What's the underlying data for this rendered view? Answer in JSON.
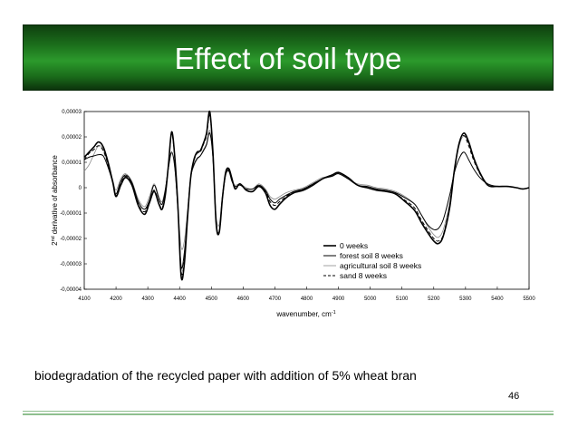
{
  "slide": {
    "title": "Effect of soil type",
    "caption": "biodegradation of the recycled paper with addition of 5% wheat bran",
    "page_number": "46"
  },
  "chart_data": {
    "type": "line",
    "title": "",
    "xlabel": "wavenumber, cm",
    "xlabel_sup": "-1",
    "ylabel_pre": "2",
    "ylabel_sup": "nd",
    "ylabel_post": "derivative of absorbance",
    "xlim": [
      4100,
      5500
    ],
    "ylim": [
      -4e-05,
      3e-05
    ],
    "xticks": [
      4100,
      4200,
      4300,
      4400,
      4500,
      4600,
      4700,
      4800,
      4900,
      5000,
      5100,
      5200,
      5300,
      5400,
      5500
    ],
    "yticks": [
      {
        "value": 3e-05,
        "label": "0,00003"
      },
      {
        "value": 2e-05,
        "label": "0,00002"
      },
      {
        "value": 1e-05,
        "label": "0,00001"
      },
      {
        "value": 0,
        "label": "0"
      },
      {
        "value": -1e-05,
        "label": "-0,00001"
      },
      {
        "value": -2e-05,
        "label": "-0,00002"
      },
      {
        "value": -3e-05,
        "label": "-0,00003"
      },
      {
        "value": -4e-05,
        "label": "-0,00004"
      }
    ],
    "grid": false,
    "legend_position": "lower-right",
    "series": [
      {
        "name": "0 weeks",
        "style": "solid",
        "width": 1.6,
        "color": "#000000",
        "x": [
          4100,
          4115,
          4130,
          4145,
          4160,
          4175,
          4190,
          4200,
          4215,
          4230,
          4250,
          4270,
          4290,
          4305,
          4320,
          4335,
          4345,
          4355,
          4365,
          4375,
          4385,
          4395,
          4405,
          4415,
          4425,
          4435,
          4445,
          4455,
          4465,
          4475,
          4485,
          4495,
          4505,
          4515,
          4525,
          4535,
          4545,
          4555,
          4565,
          4575,
          4590,
          4610,
          4630,
          4650,
          4670,
          4685,
          4700,
          4715,
          4735,
          4760,
          4790,
          4820,
          4850,
          4880,
          4900,
          4930,
          4960,
          4990,
          5020,
          5050,
          5080,
          5110,
          5140,
          5160,
          5180,
          5200,
          5215,
          5230,
          5250,
          5265,
          5280,
          5295,
          5310,
          5325,
          5345,
          5370,
          5400,
          5430,
          5460,
          5480,
          5500
        ],
        "y": [
          1.2e-05,
          1.4e-05,
          1.6e-05,
          1.8e-05,
          1.6e-05,
          1e-05,
          2e-06,
          -3.5e-06,
          1e-06,
          4e-06,
          1e-06,
          -7e-06,
          -1.05e-05,
          -6e-06,
          -1.5e-06,
          -6.5e-06,
          -8.5e-06,
          -3e-06,
          9e-06,
          2.2e-05,
          1.2e-05,
          -8e-06,
          -3.5e-05,
          -3e-05,
          -1.2e-05,
          4e-06,
          1.1e-05,
          1.4e-05,
          1.45e-05,
          1.75e-05,
          2.15e-05,
          3e-05,
          1.4e-05,
          -1.4e-05,
          -1.75e-05,
          -4e-06,
          6e-06,
          7.5e-06,
          3.5e-06,
          -5e-07,
          1.5e-06,
          -1e-06,
          -1.5e-06,
          5e-07,
          -2e-06,
          -7e-06,
          -8.5e-06,
          -6.5e-06,
          -4e-06,
          -2e-06,
          -1e-06,
          1e-06,
          3.5e-06,
          5e-06,
          6e-06,
          4e-06,
          1e-06,
          0,
          -1e-06,
          -1.5e-06,
          -2.5e-06,
          -5.5e-06,
          -9e-06,
          -1.35e-05,
          -1.75e-05,
          -2.1e-05,
          -2.2e-05,
          -1.9e-05,
          -8e-06,
          7e-06,
          1.75e-05,
          2.15e-05,
          1.8e-05,
          1.2e-05,
          6e-06,
          1e-06,
          5e-07,
          5e-07,
          0,
          -5e-07,
          0
        ]
      },
      {
        "name": "forest soil 8 weeks",
        "style": "solid",
        "width": 1.0,
        "color": "#000000",
        "x": [
          4100,
          4115,
          4130,
          4145,
          4160,
          4175,
          4190,
          4200,
          4215,
          4230,
          4250,
          4270,
          4290,
          4305,
          4320,
          4335,
          4345,
          4355,
          4365,
          4375,
          4385,
          4395,
          4405,
          4415,
          4425,
          4435,
          4445,
          4455,
          4465,
          4475,
          4485,
          4495,
          4505,
          4515,
          4525,
          4535,
          4545,
          4555,
          4565,
          4575,
          4590,
          4610,
          4630,
          4650,
          4670,
          4685,
          4700,
          4715,
          4735,
          4760,
          4790,
          4820,
          4850,
          4880,
          4900,
          4930,
          4960,
          4990,
          5020,
          5050,
          5080,
          5110,
          5140,
          5160,
          5180,
          5200,
          5215,
          5230,
          5250,
          5265,
          5280,
          5295,
          5310,
          5325,
          5345,
          5370,
          5400,
          5430,
          5460,
          5480,
          5500
        ],
        "y": [
          1.1e-05,
          1.2e-05,
          1.25e-05,
          1.3e-05,
          1.25e-05,
          8e-06,
          2e-06,
          -2.5e-06,
          2.5e-06,
          5e-06,
          2e-06,
          -5.5e-06,
          -8.5e-06,
          -5e-06,
          1e-06,
          -4.5e-06,
          -6.5e-06,
          -1e-06,
          8e-06,
          1.4e-05,
          8e-06,
          -9e-06,
          -3.1e-05,
          -2.55e-05,
          -1.1e-05,
          4e-06,
          9e-06,
          1.15e-05,
          1.25e-05,
          1.45e-05,
          1.7e-05,
          2.15e-05,
          1.2e-05,
          -1.3e-05,
          -1.75e-05,
          -4e-06,
          5e-06,
          6.5e-06,
          2.5e-06,
          5e-07,
          1e-06,
          -5e-07,
          -5e-07,
          1e-06,
          -1e-06,
          -4.5e-06,
          -6e-06,
          -4.5e-06,
          -3e-06,
          -1.5e-06,
          -5e-07,
          1.5e-06,
          3.5e-06,
          4.5e-06,
          5.5e-06,
          3.5e-06,
          1e-06,
          5e-07,
          -5e-07,
          -1e-06,
          -2e-06,
          -4e-06,
          -6.5e-06,
          -1.05e-05,
          -1.45e-05,
          -1.65e-05,
          -1.6e-05,
          -1.25e-05,
          -3e-06,
          6e-06,
          1.15e-05,
          1.4e-05,
          1.1e-05,
          7.5e-06,
          4e-06,
          1.5e-06,
          5e-07,
          5e-07,
          0,
          -5e-07,
          0
        ]
      },
      {
        "name": "agricultural soil 8 weeks",
        "style": "solid",
        "width": 0.8,
        "color": "#8a8a8a",
        "x": [
          4100,
          4115,
          4130,
          4145,
          4160,
          4175,
          4190,
          4200,
          4215,
          4230,
          4250,
          4270,
          4290,
          4305,
          4320,
          4335,
          4345,
          4355,
          4365,
          4375,
          4385,
          4395,
          4405,
          4415,
          4425,
          4435,
          4445,
          4455,
          4465,
          4475,
          4485,
          4495,
          4505,
          4515,
          4525,
          4535,
          4545,
          4555,
          4565,
          4575,
          4590,
          4610,
          4630,
          4650,
          4670,
          4685,
          4700,
          4715,
          4735,
          4760,
          4790,
          4820,
          4850,
          4880,
          4900,
          4930,
          4960,
          4990,
          5020,
          5050,
          5080,
          5110,
          5140,
          5160,
          5180,
          5200,
          5215,
          5230,
          5250,
          5265,
          5280,
          5295,
          5310,
          5325,
          5345,
          5370,
          5400,
          5430,
          5460,
          5480,
          5500
        ],
        "y": [
          6.5e-06,
          9e-06,
          1.3e-05,
          1.65e-05,
          1.5e-05,
          9e-06,
          3e-06,
          -1e-06,
          3.5e-06,
          5.5e-06,
          2.5e-06,
          -4.5e-06,
          -7.5e-06,
          -3.5e-06,
          1.5e-06,
          -3.5e-06,
          -5.5e-06,
          -5e-07,
          7.5e-06,
          1.35e-05,
          7.5e-06,
          -8e-06,
          -2.35e-05,
          -2.1e-05,
          -9e-06,
          4e-06,
          8.5e-06,
          1.1e-05,
          1.25e-05,
          1.5e-05,
          1.75e-05,
          2.25e-05,
          1.1e-05,
          -1.1e-05,
          -1.45e-05,
          -2.5e-06,
          5.5e-06,
          7e-06,
          3e-06,
          1e-06,
          1.5e-06,
          0,
          -5e-07,
          1.5e-06,
          -5e-07,
          -3.5e-06,
          -4.5e-06,
          -3.5e-06,
          -2e-06,
          -1e-06,
          0,
          2e-06,
          4e-06,
          4.5e-06,
          5.5e-06,
          3.5e-06,
          1.5e-06,
          1e-06,
          0,
          -5e-07,
          -1.5e-06,
          -3.5e-06,
          -6.5e-06,
          -1.05e-05,
          -1.5e-05,
          -1.85e-05,
          -1.95e-05,
          -1.65e-05,
          -6e-06,
          7e-06,
          1.65e-05,
          2.05e-05,
          1.75e-05,
          1.15e-05,
          5.5e-06,
          1.5e-06,
          5e-07,
          5e-07,
          0,
          -5e-07,
          0
        ]
      },
      {
        "name": "sand 8 weeks",
        "style": "dashed",
        "width": 1.0,
        "color": "#000000",
        "x": [
          4100,
          4115,
          4130,
          4145,
          4160,
          4175,
          4190,
          4200,
          4215,
          4230,
          4250,
          4270,
          4290,
          4305,
          4320,
          4335,
          4345,
          4355,
          4365,
          4375,
          4385,
          4395,
          4405,
          4415,
          4425,
          4435,
          4445,
          4455,
          4465,
          4475,
          4485,
          4495,
          4505,
          4515,
          4525,
          4535,
          4545,
          4555,
          4565,
          4575,
          4590,
          4610,
          4630,
          4650,
          4670,
          4685,
          4700,
          4715,
          4735,
          4760,
          4790,
          4820,
          4850,
          4880,
          4900,
          4930,
          4960,
          4990,
          5020,
          5050,
          5080,
          5110,
          5140,
          5160,
          5180,
          5200,
          5215,
          5230,
          5250,
          5265,
          5280,
          5295,
          5310,
          5325,
          5345,
          5370,
          5400,
          5430,
          5460,
          5480,
          5500
        ],
        "y": [
          1.1e-05,
          1.35e-05,
          1.5e-05,
          1.65e-05,
          1.45e-05,
          9e-06,
          2e-06,
          -3e-06,
          1.5e-06,
          4.5e-06,
          1.5e-06,
          -6.5e-06,
          -9.5e-06,
          -5.5e-06,
          -1e-06,
          -6e-06,
          -8e-06,
          -2.5e-06,
          8.5e-06,
          2.1e-05,
          1.15e-05,
          -8e-06,
          -3.3e-05,
          -2.85e-05,
          -1.15e-05,
          4e-06,
          1.05e-05,
          1.35e-05,
          1.4e-05,
          1.7e-05,
          2.05e-05,
          2.85e-05,
          1.35e-05,
          -1.4e-05,
          -1.75e-05,
          -3.5e-06,
          5.5e-06,
          7e-06,
          3e-06,
          0,
          1.5e-06,
          -1e-06,
          -1.5e-06,
          1e-06,
          -1.5e-06,
          -5.5e-06,
          -7e-06,
          -5.5e-06,
          -3.5e-06,
          -1.5e-06,
          -5e-07,
          1.5e-06,
          3.5e-06,
          5e-06,
          6e-06,
          4e-06,
          1e-06,
          0,
          -1e-06,
          -1.5e-06,
          -2.5e-06,
          -5e-06,
          -8e-06,
          -1.25e-05,
          -1.65e-05,
          -2e-05,
          -2.1e-05,
          -1.85e-05,
          -7e-06,
          7e-06,
          1.75e-05,
          2.05e-05,
          1.65e-05,
          1.1e-05,
          5.5e-06,
          1e-06,
          5e-07,
          5e-07,
          0,
          -5e-07,
          0
        ]
      }
    ]
  }
}
